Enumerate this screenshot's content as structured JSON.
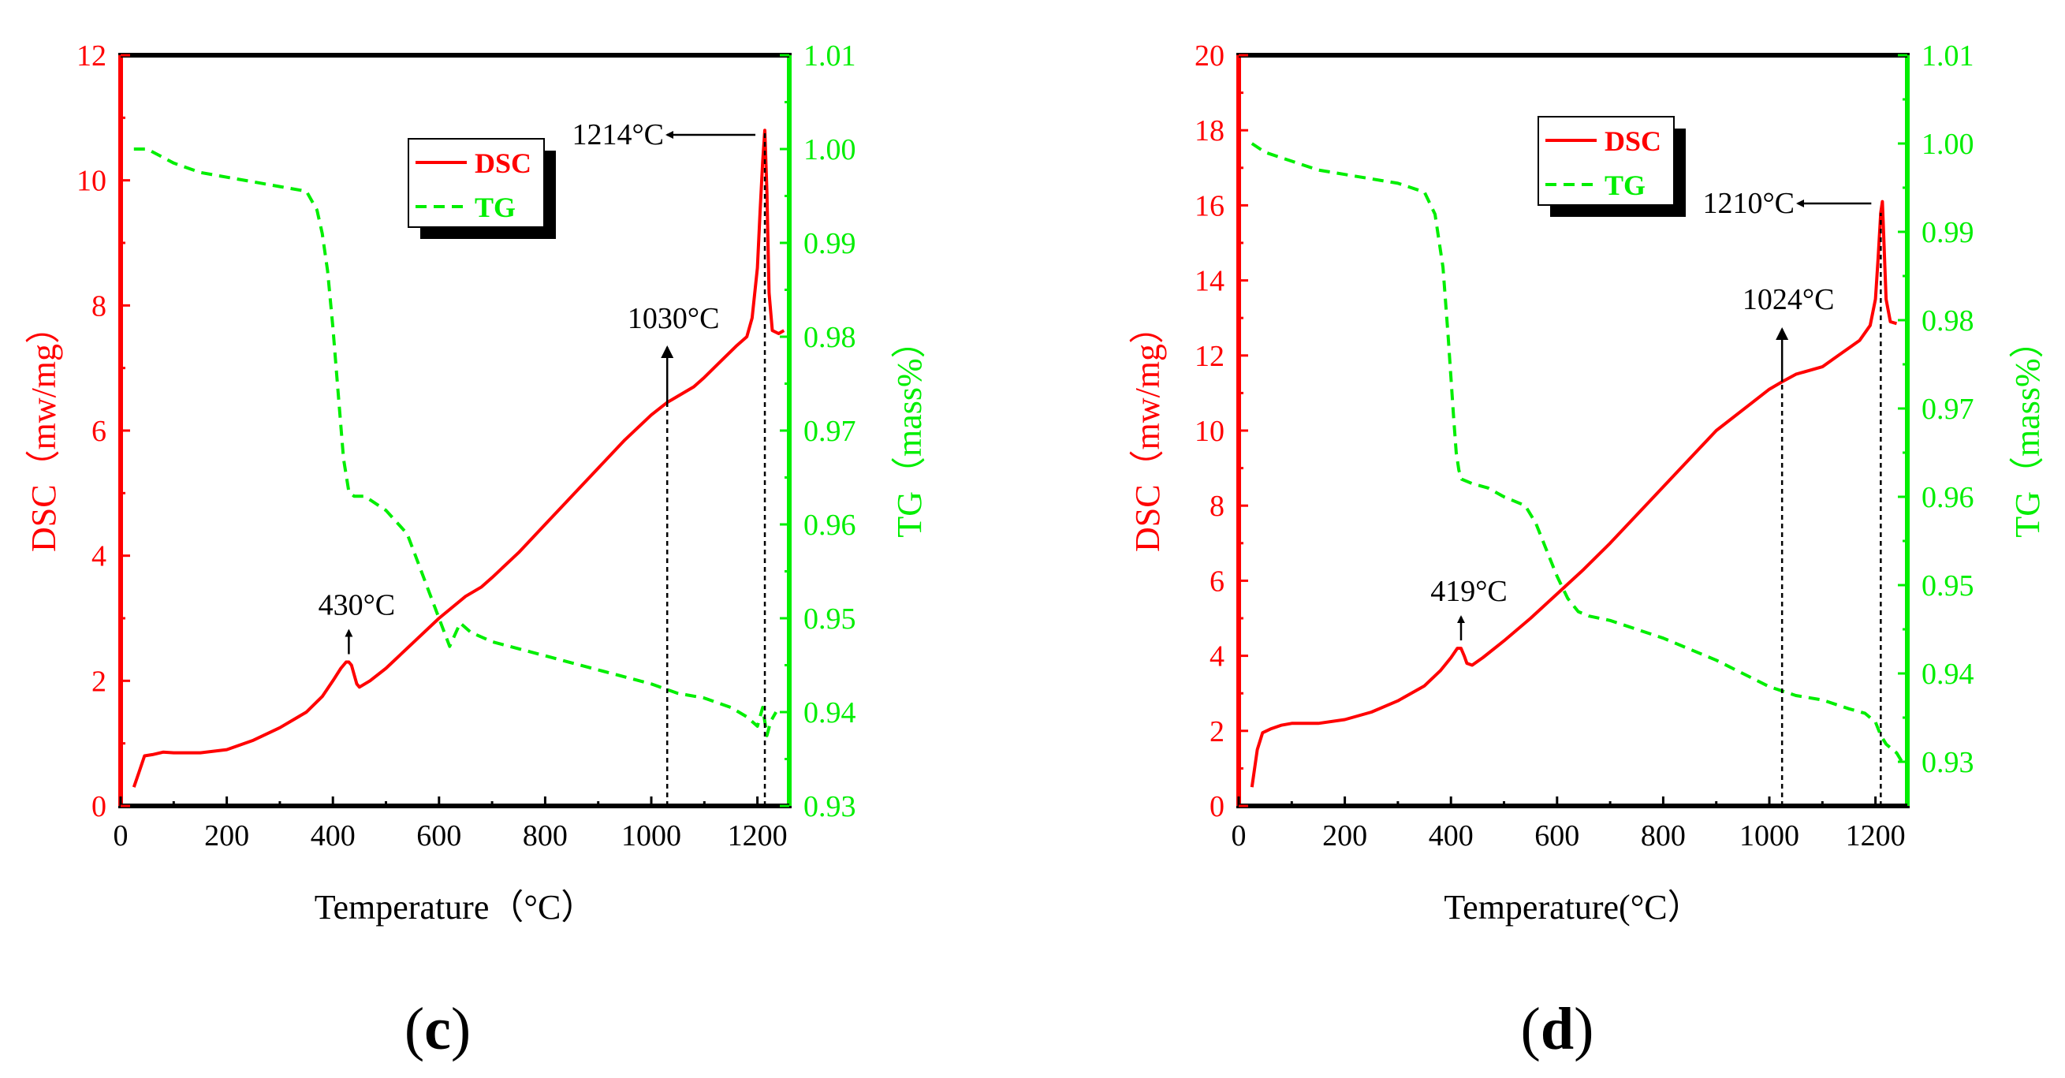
{
  "colors": {
    "dsc": "#ff0000",
    "tg": "#00ee00",
    "axis": "#000000"
  },
  "chart_data": [
    {
      "type": "line",
      "panel_label": "(c)",
      "panel_label_open": "(",
      "panel_label_letter": "c",
      "panel_label_close": ")",
      "xlabel": "Temperature（°C）",
      "ylabel_left": "DSC（mw/mg）",
      "ylabel_right": "TG（mass%）",
      "xlim": [
        0,
        1260
      ],
      "ylim_left": [
        0,
        12
      ],
      "ylim_right": [
        0.93,
        1.01
      ],
      "xticks": [
        0,
        200,
        400,
        600,
        800,
        1000,
        1200
      ],
      "yticks_left": [
        0,
        2,
        4,
        6,
        8,
        10,
        12
      ],
      "yticks_right": [
        "0.93",
        "0.94",
        "0.95",
        "0.96",
        "0.97",
        "0.98",
        "0.99",
        "1.00",
        "1.01"
      ],
      "legend": [
        {
          "label": "DSC",
          "style": "solid"
        },
        {
          "label": "TG",
          "style": "dashed"
        }
      ],
      "series": [
        {
          "name": "DSC",
          "axis": "left",
          "x": [
            25,
            35,
            45,
            60,
            80,
            100,
            150,
            200,
            250,
            300,
            350,
            380,
            400,
            415,
            425,
            430,
            435,
            440,
            445,
            450,
            470,
            500,
            550,
            600,
            650,
            680,
            700,
            750,
            800,
            850,
            900,
            950,
            1000,
            1030,
            1050,
            1080,
            1100,
            1130,
            1160,
            1180,
            1190,
            1200,
            1205,
            1210,
            1214,
            1218,
            1222,
            1228,
            1240,
            1250
          ],
          "y": [
            0.3,
            0.55,
            0.8,
            0.82,
            0.86,
            0.85,
            0.85,
            0.9,
            1.05,
            1.25,
            1.5,
            1.75,
            2.0,
            2.2,
            2.3,
            2.3,
            2.25,
            2.1,
            1.95,
            1.9,
            2.0,
            2.2,
            2.6,
            3.0,
            3.35,
            3.5,
            3.65,
            4.05,
            4.5,
            4.95,
            5.4,
            5.85,
            6.25,
            6.45,
            6.55,
            6.7,
            6.85,
            7.1,
            7.35,
            7.5,
            7.8,
            8.6,
            9.5,
            10.3,
            10.8,
            9.8,
            8.2,
            7.6,
            7.55,
            7.6
          ]
        },
        {
          "name": "TG",
          "axis": "right",
          "x": [
            25,
            50,
            100,
            150,
            200,
            250,
            300,
            350,
            370,
            380,
            390,
            400,
            410,
            420,
            430,
            440,
            460,
            500,
            540,
            560,
            580,
            600,
            620,
            640,
            660,
            680,
            700,
            800,
            900,
            1000,
            1050,
            1100,
            1150,
            1180,
            1200,
            1210,
            1214,
            1218,
            1225,
            1235
          ],
          "y": [
            1.0,
            1.0,
            0.9985,
            0.9975,
            0.997,
            0.9965,
            0.996,
            0.9955,
            0.9935,
            0.991,
            0.987,
            0.981,
            0.974,
            0.967,
            0.9635,
            0.963,
            0.963,
            0.9615,
            0.959,
            0.956,
            0.953,
            0.95,
            0.947,
            0.9495,
            0.9485,
            0.948,
            0.9475,
            0.946,
            0.9445,
            0.943,
            0.942,
            0.9415,
            0.9405,
            0.9395,
            0.9385,
            0.9405,
            0.939,
            0.9375,
            0.939,
            0.94
          ]
        }
      ],
      "annotations": [
        {
          "text": "430°C",
          "x": 430
        },
        {
          "text": "1030°C",
          "x": 1030
        },
        {
          "text": "1214°C",
          "x": 1214
        }
      ]
    },
    {
      "type": "line",
      "panel_label": "(d)",
      "panel_label_open": "(",
      "panel_label_letter": "d",
      "panel_label_close": ")",
      "xlabel": "Temperature(°C）",
      "ylabel_left": "DSC（mw/mg）",
      "ylabel_right": "TG（mass%）",
      "xlim": [
        0,
        1260
      ],
      "ylim_left": [
        0,
        20
      ],
      "ylim_right": [
        0.925,
        1.01
      ],
      "xticks": [
        0,
        200,
        400,
        600,
        800,
        1000,
        1200
      ],
      "yticks_left": [
        0,
        2,
        4,
        6,
        8,
        10,
        12,
        14,
        16,
        18,
        20
      ],
      "yticks_right": [
        "0.93",
        "0.94",
        "0.95",
        "0.96",
        "0.97",
        "0.98",
        "0.99",
        "1.00",
        "1.01"
      ],
      "legend": [
        {
          "label": "DSC",
          "style": "solid"
        },
        {
          "label": "TG",
          "style": "dashed"
        }
      ],
      "series": [
        {
          "name": "DSC",
          "axis": "left",
          "x": [
            25,
            35,
            45,
            60,
            80,
            100,
            150,
            200,
            250,
            300,
            350,
            380,
            400,
            412,
            419,
            425,
            430,
            440,
            460,
            500,
            550,
            600,
            650,
            700,
            800,
            900,
            1000,
            1024,
            1050,
            1100,
            1130,
            1150,
            1170,
            1190,
            1200,
            1205,
            1210,
            1213,
            1216,
            1220,
            1228,
            1240
          ],
          "y": [
            0.5,
            1.5,
            1.95,
            2.05,
            2.15,
            2.2,
            2.2,
            2.3,
            2.5,
            2.8,
            3.2,
            3.6,
            3.95,
            4.2,
            4.2,
            4.0,
            3.8,
            3.75,
            3.95,
            4.4,
            5.0,
            5.65,
            6.3,
            7.0,
            8.5,
            10.0,
            11.1,
            11.3,
            11.5,
            11.7,
            12.0,
            12.2,
            12.4,
            12.8,
            13.5,
            14.6,
            15.8,
            16.1,
            15.0,
            13.5,
            12.9,
            12.85
          ]
        },
        {
          "name": "TG",
          "axis": "right",
          "x": [
            25,
            50,
            100,
            150,
            200,
            250,
            300,
            350,
            370,
            385,
            395,
            405,
            410,
            415,
            420,
            440,
            470,
            500,
            540,
            560,
            580,
            600,
            620,
            640,
            660,
            700,
            800,
            900,
            1000,
            1050,
            1100,
            1150,
            1180,
            1200,
            1210,
            1220,
            1240,
            1250
          ],
          "y": [
            1.0,
            0.999,
            0.998,
            0.997,
            0.9965,
            0.996,
            0.9955,
            0.9945,
            0.992,
            0.986,
            0.978,
            0.969,
            0.965,
            0.963,
            0.962,
            0.9615,
            0.961,
            0.96,
            0.959,
            0.957,
            0.954,
            0.951,
            0.9485,
            0.947,
            0.9465,
            0.946,
            0.944,
            0.9415,
            0.9385,
            0.9375,
            0.937,
            0.936,
            0.9355,
            0.9345,
            0.933,
            0.932,
            0.931,
            0.93
          ]
        }
      ],
      "annotations": [
        {
          "text": "419°C",
          "x": 419
        },
        {
          "text": "1024°C",
          "x": 1024
        },
        {
          "text": "1210°C",
          "x": 1210
        }
      ]
    }
  ]
}
